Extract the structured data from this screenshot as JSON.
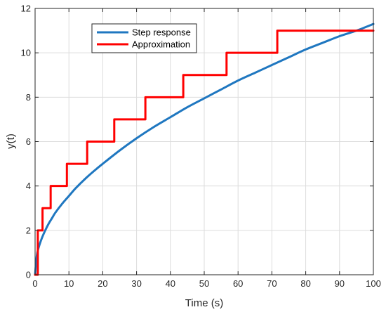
{
  "chart_data": {
    "type": "line",
    "xlabel": "Time (s)",
    "ylabel": "y(t)",
    "xlim": [
      0,
      100
    ],
    "ylim": [
      0,
      12
    ],
    "xticks": [
      0,
      10,
      20,
      30,
      40,
      50,
      60,
      70,
      80,
      90,
      100
    ],
    "yticks": [
      0,
      2,
      4,
      6,
      8,
      10,
      12
    ],
    "grid": true,
    "legend_position": "top-left",
    "series": [
      {
        "name": "Step response",
        "color": "#1f77c0",
        "style": "smooth",
        "x": [
          0,
          0.5,
          1,
          2,
          3,
          4,
          5,
          6,
          8,
          10,
          12,
          15,
          18,
          20,
          25,
          30,
          35,
          40,
          45,
          50,
          55,
          60,
          65,
          70,
          75,
          80,
          85,
          90,
          95,
          100
        ],
        "y": [
          0,
          0.85,
          1.2,
          1.65,
          2.0,
          2.3,
          2.55,
          2.8,
          3.2,
          3.55,
          3.9,
          4.35,
          4.75,
          5.0,
          5.6,
          6.15,
          6.65,
          7.1,
          7.55,
          7.95,
          8.35,
          8.75,
          9.1,
          9.45,
          9.8,
          10.15,
          10.45,
          10.75,
          11.0,
          11.3
        ]
      },
      {
        "name": "Approximation",
        "color": "#ff0000",
        "style": "step",
        "x": [
          0,
          0.8,
          2.2,
          4.6,
          9.4,
          15.4,
          23.4,
          32.6,
          43.8,
          56.6,
          71.6,
          86.4,
          100
        ],
        "y": [
          0,
          2,
          3,
          4,
          5,
          6,
          7,
          8,
          9,
          10,
          11,
          11,
          11
        ]
      }
    ]
  }
}
